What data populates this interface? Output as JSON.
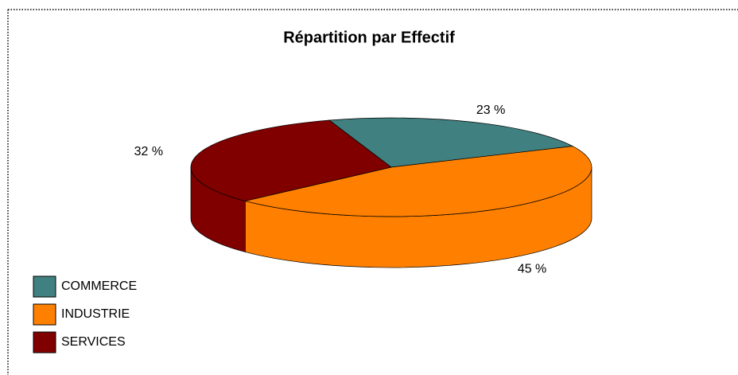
{
  "chart_data": {
    "type": "pie",
    "title": "Répartition par Effectif",
    "categories": [
      "COMMERCE",
      "INDUSTRIE",
      "SERVICES"
    ],
    "values": [
      23,
      45,
      32
    ],
    "value_labels": [
      "23 %",
      "45 %",
      "32 %"
    ],
    "colors": [
      "#408080",
      "#ff8000",
      "#800000"
    ],
    "legend": "bottom-left"
  }
}
